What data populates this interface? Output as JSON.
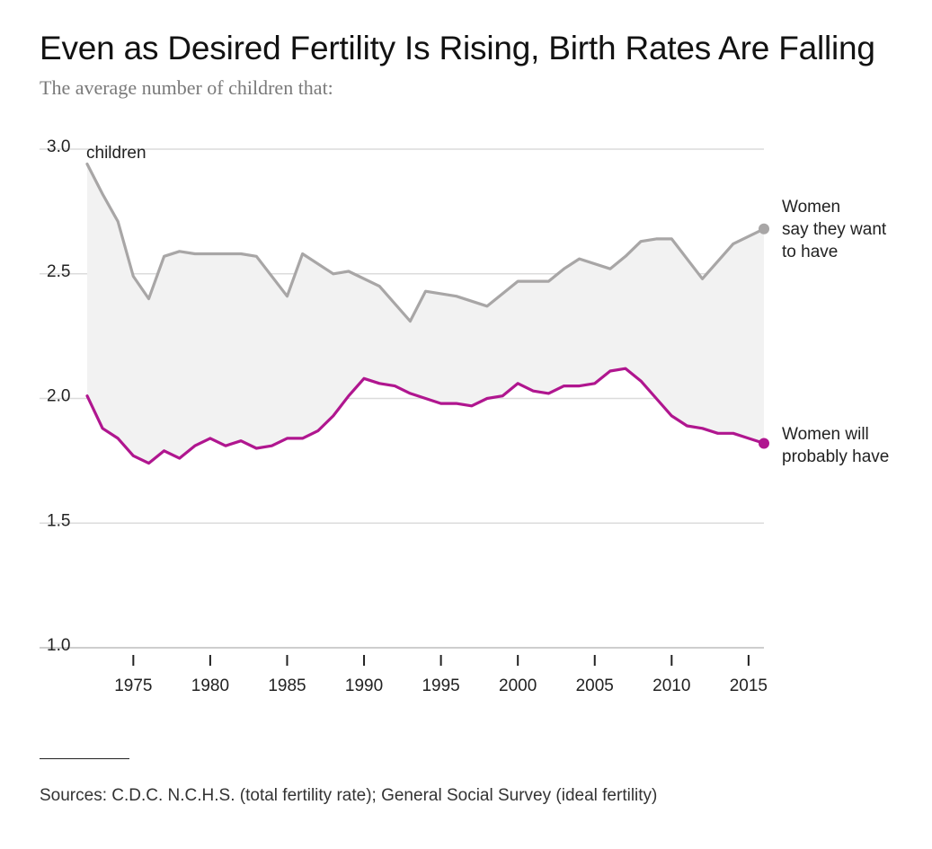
{
  "header": {
    "title": "Even as Desired Fertility Is Rising, Birth Rates Are Falling",
    "subtitle": "The average number of children that:"
  },
  "footer": {
    "source": "Sources: C.D.C. N.C.H.S. (total fertility rate); General Social Survey (ideal fertility)"
  },
  "chart_data": {
    "type": "line",
    "title": "Even as Desired Fertility Is Rising, Birth Rates Are Falling",
    "subtitle": "The average number of children that:",
    "ylabel": "children",
    "ylim": [
      1.0,
      3.0
    ],
    "xlim": [
      1972,
      2016
    ],
    "yticks": [
      1.0,
      1.5,
      2.0,
      2.5,
      3.0
    ],
    "ytick_labels": [
      "1.0",
      "1.5",
      "2.0",
      "2.5",
      "3.0"
    ],
    "xticks": [
      1975,
      1980,
      1985,
      1990,
      1995,
      2000,
      2005,
      2010,
      2015
    ],
    "xtick_labels": [
      "1975",
      "1980",
      "1985",
      "1990",
      "1995",
      "2000",
      "2005",
      "2010",
      "2015"
    ],
    "grid": true,
    "shaded_between_series": true,
    "series": [
      {
        "name": "Women say they want to have",
        "label_lines": [
          "Women",
          "say they want",
          "to have"
        ],
        "color": "#a8a6a6",
        "x": [
          1972,
          1973,
          1974,
          1975,
          1976,
          1977,
          1978,
          1979,
          1980,
          1981,
          1982,
          1983,
          1985,
          1986,
          1988,
          1989,
          1991,
          1993,
          1994,
          1996,
          1998,
          2000,
          2002,
          2003,
          2004,
          2006,
          2007,
          2008,
          2009,
          2010,
          2012,
          2014,
          2016
        ],
        "values": [
          2.94,
          2.82,
          2.71,
          2.49,
          2.4,
          2.57,
          2.59,
          2.58,
          2.58,
          2.58,
          2.58,
          2.57,
          2.41,
          2.58,
          2.5,
          2.51,
          2.45,
          2.31,
          2.43,
          2.41,
          2.37,
          2.47,
          2.47,
          2.52,
          2.56,
          2.52,
          2.57,
          2.63,
          2.64,
          2.64,
          2.48,
          2.62,
          2.68
        ]
      },
      {
        "name": "Women will probably have",
        "label_lines": [
          "Women will",
          "probably have"
        ],
        "color": "#b0168f",
        "x": [
          1972,
          1973,
          1974,
          1975,
          1976,
          1977,
          1978,
          1979,
          1980,
          1981,
          1982,
          1983,
          1984,
          1985,
          1986,
          1987,
          1988,
          1989,
          1990,
          1991,
          1992,
          1993,
          1994,
          1995,
          1996,
          1997,
          1998,
          1999,
          2000,
          2001,
          2002,
          2003,
          2004,
          2005,
          2006,
          2007,
          2008,
          2009,
          2010,
          2011,
          2012,
          2013,
          2014,
          2015,
          2016
        ],
        "values": [
          2.01,
          1.88,
          1.84,
          1.77,
          1.74,
          1.79,
          1.76,
          1.81,
          1.84,
          1.81,
          1.83,
          1.8,
          1.81,
          1.84,
          1.84,
          1.87,
          1.93,
          2.01,
          2.08,
          2.06,
          2.05,
          2.02,
          2.0,
          1.98,
          1.98,
          1.97,
          2.0,
          2.01,
          2.06,
          2.03,
          2.02,
          2.05,
          2.05,
          2.06,
          2.11,
          2.12,
          2.07,
          2.0,
          1.93,
          1.89,
          1.88,
          1.86,
          1.86,
          1.84,
          1.82
        ]
      }
    ]
  }
}
